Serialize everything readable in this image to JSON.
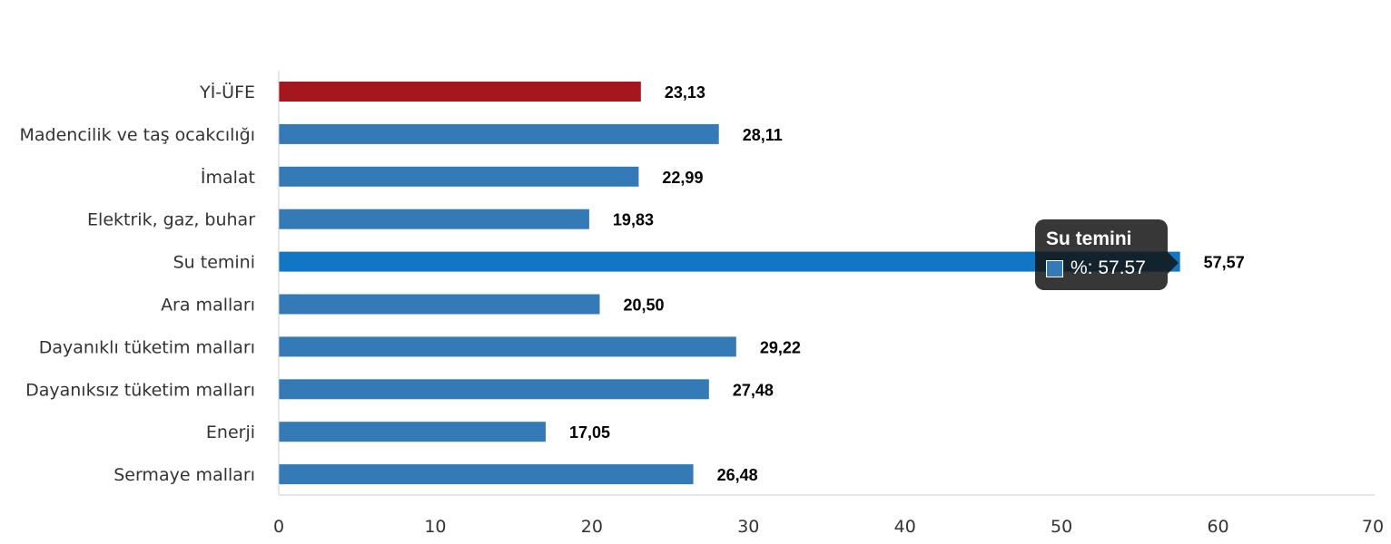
{
  "chart_data": {
    "type": "bar",
    "orientation": "horizontal",
    "categories": [
      "Yİ-ÜFE",
      "Madencilik ve taş ocakcılığı",
      "İmalat",
      "Elektrik, gaz, buhar",
      "Su temini",
      "Ara malları",
      "Dayanıklı tüketim malları",
      "Dayanıksız tüketim malları",
      "Enerji",
      "Sermaye malları"
    ],
    "values": [
      23.13,
      28.11,
      22.99,
      19.83,
      57.57,
      20.5,
      29.22,
      27.48,
      17.05,
      26.48
    ],
    "value_labels": [
      "23,13",
      "28,11",
      "22,99",
      "19,83",
      "57,57",
      "20,50",
      "29,22",
      "27,48",
      "17,05",
      "26,48"
    ],
    "xlim": [
      0,
      70
    ],
    "xticks": [
      0,
      10,
      20,
      30,
      40,
      50,
      60,
      70
    ],
    "grid": false,
    "colors": {
      "default": "#337ab7",
      "highlight_total": "#a5161d",
      "hovered": "#1177c4"
    },
    "highlight_index": 0,
    "hovered_index": 4
  },
  "tooltip": {
    "title": "Su temini",
    "row_text": "%: 57.57",
    "swatch_color": "#337ab7"
  }
}
